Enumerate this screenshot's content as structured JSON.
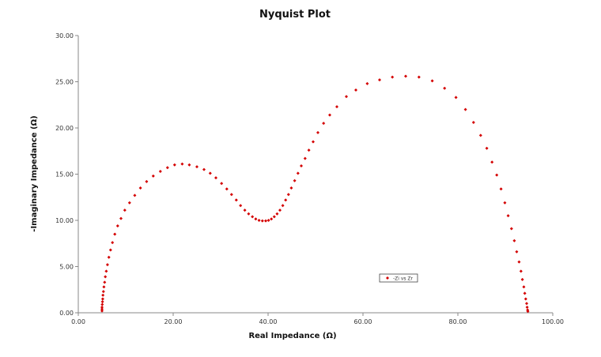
{
  "chart_data": {
    "type": "scatter",
    "title": "Nyquist Plot",
    "xlabel": "Real Impedance (Ω)",
    "ylabel": "-Imaginary Impedance (Ω)",
    "xlim": [
      0,
      100
    ],
    "ylim": [
      0,
      30
    ],
    "xticks": [
      "0.00",
      "20.00",
      "40.00",
      "60.00",
      "80.00",
      "100.00"
    ],
    "yticks": [
      "0.00",
      "5.00",
      "10.00",
      "15.00",
      "20.00",
      "25.00",
      "30.00"
    ],
    "grid": false,
    "legend_position": "lower-right",
    "marker_color": "#d40000",
    "marker": "diamond",
    "series": [
      {
        "name": "-Zi vs Zr",
        "points": [
          [
            5.0,
            0.2
          ],
          [
            5.0,
            0.4
          ],
          [
            5.0,
            0.6
          ],
          [
            5.05,
            0.9
          ],
          [
            5.1,
            1.2
          ],
          [
            5.15,
            1.5
          ],
          [
            5.2,
            1.9
          ],
          [
            5.3,
            2.3
          ],
          [
            5.4,
            2.8
          ],
          [
            5.55,
            3.3
          ],
          [
            5.7,
            3.9
          ],
          [
            5.9,
            4.5
          ],
          [
            6.15,
            5.2
          ],
          [
            6.45,
            6.0
          ],
          [
            6.8,
            6.8
          ],
          [
            7.2,
            7.6
          ],
          [
            7.7,
            8.5
          ],
          [
            8.3,
            9.4
          ],
          [
            9.0,
            10.2
          ],
          [
            9.8,
            11.1
          ],
          [
            10.8,
            11.9
          ],
          [
            11.9,
            12.7
          ],
          [
            13.1,
            13.5
          ],
          [
            14.4,
            14.2
          ],
          [
            15.8,
            14.8
          ],
          [
            17.3,
            15.3
          ],
          [
            18.8,
            15.7
          ],
          [
            20.3,
            16.0
          ],
          [
            21.9,
            16.1
          ],
          [
            23.4,
            16.0
          ],
          [
            25.0,
            15.8
          ],
          [
            26.5,
            15.5
          ],
          [
            27.8,
            15.1
          ],
          [
            29.0,
            14.6
          ],
          [
            30.2,
            14.0
          ],
          [
            31.3,
            13.4
          ],
          [
            32.3,
            12.8
          ],
          [
            33.3,
            12.2
          ],
          [
            34.2,
            11.6
          ],
          [
            35.1,
            11.1
          ],
          [
            35.9,
            10.7
          ],
          [
            36.7,
            10.4
          ],
          [
            37.4,
            10.15
          ],
          [
            38.1,
            10.0
          ],
          [
            38.8,
            9.95
          ],
          [
            39.5,
            9.95
          ],
          [
            40.1,
            10.0
          ],
          [
            40.7,
            10.15
          ],
          [
            41.3,
            10.4
          ],
          [
            41.9,
            10.7
          ],
          [
            42.5,
            11.1
          ],
          [
            43.1,
            11.6
          ],
          [
            43.7,
            12.2
          ],
          [
            44.3,
            12.8
          ],
          [
            44.9,
            13.5
          ],
          [
            45.6,
            14.3
          ],
          [
            46.3,
            15.1
          ],
          [
            47.0,
            15.9
          ],
          [
            47.8,
            16.7
          ],
          [
            48.6,
            17.6
          ],
          [
            49.5,
            18.5
          ],
          [
            50.5,
            19.5
          ],
          [
            51.7,
            20.5
          ],
          [
            53.0,
            21.4
          ],
          [
            54.5,
            22.3
          ],
          [
            56.5,
            23.4
          ],
          [
            58.5,
            24.1
          ],
          [
            60.9,
            24.8
          ],
          [
            63.5,
            25.2
          ],
          [
            66.2,
            25.5
          ],
          [
            69.0,
            25.6
          ],
          [
            71.8,
            25.5
          ],
          [
            74.6,
            25.1
          ],
          [
            77.2,
            24.3
          ],
          [
            79.6,
            23.3
          ],
          [
            81.6,
            22.0
          ],
          [
            83.3,
            20.6
          ],
          [
            84.8,
            19.2
          ],
          [
            86.1,
            17.8
          ],
          [
            87.2,
            16.3
          ],
          [
            88.2,
            14.9
          ],
          [
            89.1,
            13.4
          ],
          [
            89.9,
            11.9
          ],
          [
            90.6,
            10.5
          ],
          [
            91.3,
            9.1
          ],
          [
            91.9,
            7.8
          ],
          [
            92.4,
            6.6
          ],
          [
            92.9,
            5.5
          ],
          [
            93.3,
            4.5
          ],
          [
            93.6,
            3.6
          ],
          [
            93.9,
            2.8
          ],
          [
            94.1,
            2.1
          ],
          [
            94.3,
            1.5
          ],
          [
            94.5,
            1.0
          ],
          [
            94.6,
            0.6
          ],
          [
            94.7,
            0.3
          ],
          [
            94.75,
            0.15
          ]
        ]
      }
    ]
  }
}
